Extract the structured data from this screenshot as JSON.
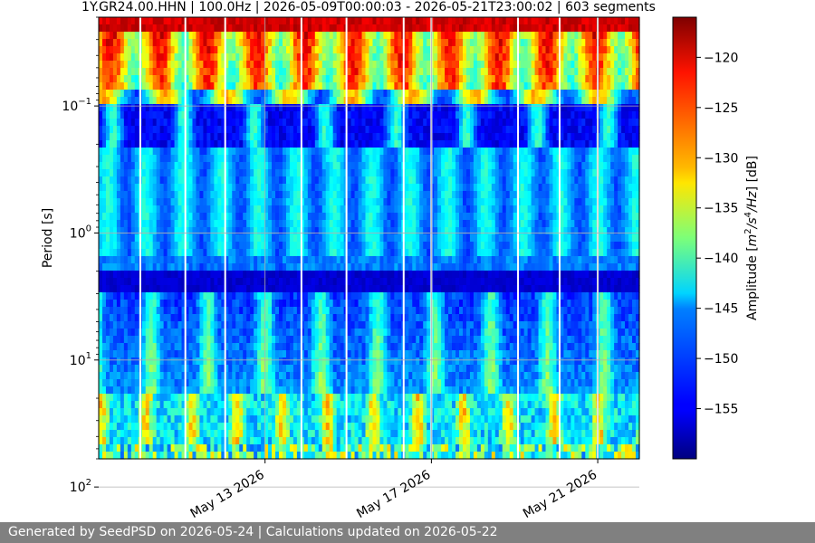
{
  "chart_data": {
    "type": "heatmap",
    "title": "1Y.GR24.00.HHN | 100.0Hz | 2026-05-09T00:00:03 - 2026-05-21T23:00:02 | 603 segments",
    "ylabel": "Period [s]",
    "y_scale": "log",
    "ylim": [
      0.02,
      60
    ],
    "y_tick_labels": [
      {
        "value": 0.1,
        "base": "10",
        "exp": "−1"
      },
      {
        "value": 1,
        "base": "10",
        "exp": "0"
      },
      {
        "value": 10,
        "base": "10",
        "exp": "1"
      },
      {
        "value": 100,
        "base": "10",
        "exp": "2"
      }
    ],
    "x_type": "date",
    "xlim": [
      "2026-05-09",
      "2026-05-22"
    ],
    "x_tick_labels": [
      {
        "date": "2026-05-13",
        "label": "May 13 2026"
      },
      {
        "date": "2026-05-17",
        "label": "May 17 2026"
      },
      {
        "date": "2026-05-21",
        "label": "May 21 2026"
      }
    ],
    "grid": true,
    "colormap": "jet",
    "colorbar": {
      "label_prefix": "Amplitude [",
      "label_unit": "m",
      "label_sup1": "2",
      "label_mid": "/s",
      "label_sup2": "4",
      "label_end": "/Hz",
      "label_suffix": "] [dB]",
      "vmin": -160,
      "vmax": -116,
      "ticks": [
        -120,
        -125,
        -130,
        -135,
        -140,
        -145,
        -150,
        -155
      ],
      "tick_labels": [
        "−120",
        "−125",
        "−130",
        "−135",
        "−140",
        "−145",
        "−150",
        "−155"
      ]
    },
    "data_gaps": [
      "2026-05-10",
      "2026-05-11T02:00",
      "2026-05-12T01:00",
      "2026-05-13T21:00",
      "2026-05-14T23:00",
      "2026-05-16T08:00",
      "2026-05-17T00:00",
      "2026-05-19T02:00",
      "2026-05-20T02:00",
      "2026-05-21T00:00"
    ],
    "microseism_peaks_period_s": [
      2.5
    ],
    "microseism_peaks_dates": [
      "2026-05-09T22:00",
      "2026-05-12T03:00",
      "2026-05-13T00:00",
      "2026-05-14T00:00",
      "2026-05-15T00:00",
      "2026-05-16T06:00",
      "2026-05-18T18:00",
      "2026-05-20T12:00",
      "2026-05-21T12:00"
    ]
  },
  "footer": {
    "text": "Generated by SeedPSD on 2026-05-24 | Calculations updated on 2026-05-22"
  }
}
